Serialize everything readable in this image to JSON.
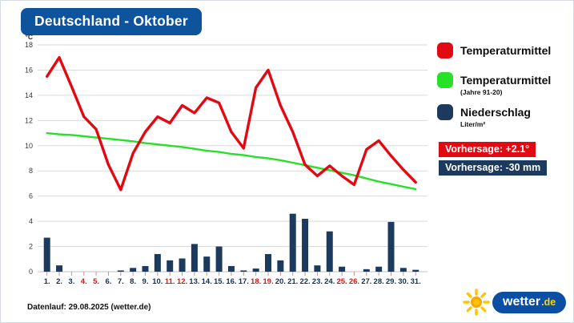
{
  "title": "Deutschland - Oktober",
  "colors": {
    "title_bg": "#0d549c",
    "temp_red": "#e30913",
    "avg_green": "#27e027",
    "precip_navy": "#1b3a5e",
    "weekend_label_red": "#cc1a1a",
    "weekday_label_navy": "#16324f",
    "logo_bg": "#0a4fa4",
    "logo_tld_yellow": "#ffd400"
  },
  "legend": {
    "items": [
      {
        "label": "Temperaturmittel",
        "sublabel": "",
        "color": "#e30913"
      },
      {
        "label": "Temperaturmittel",
        "sublabel": "(Jahre 91-20)",
        "color": "#27e027"
      },
      {
        "label": "Niederschlag",
        "sublabel": "Liter/m²",
        "color": "#1b3a5e"
      }
    ]
  },
  "badges": {
    "temperature": {
      "label": "Vorhersage: +2.1°",
      "color": "#e30913"
    },
    "precipitation": {
      "label": "Vorhersage: -30 mm",
      "color": "#1b3a5e"
    }
  },
  "footer": {
    "datenlauf": "Datenlauf: 29.08.2025 (wetter.de)"
  },
  "logo": {
    "name": "wetter",
    "tld": ".de"
  },
  "chart_data": {
    "type": "line+bar",
    "title": "Deutschland - Oktober",
    "ylabel": "°C",
    "ylim": [
      0,
      18
    ],
    "ytick_step": 2,
    "grid": true,
    "legend_position": "right",
    "x_labels": [
      "1.",
      "2.",
      "3.",
      "4.",
      "5.",
      "6.",
      "7.",
      "8.",
      "9.",
      "10.",
      "11.",
      "12.",
      "13.",
      "14.",
      "15.",
      "16.",
      "17.",
      "18.",
      "19.",
      "20.",
      "21.",
      "22.",
      "23.",
      "24.",
      "25.",
      "26.",
      "27.",
      "28.",
      "29.",
      "30.",
      "31."
    ],
    "red_x_labels": [
      4,
      5,
      11,
      12,
      18,
      19,
      25,
      26
    ],
    "series": [
      {
        "name": "Temperaturmittel",
        "type": "line",
        "color": "#e30913",
        "values": [
          15.5,
          17,
          14.7,
          12.3,
          11.3,
          8.5,
          6.5,
          9.4,
          11.1,
          12.3,
          11.8,
          13.2,
          12.6,
          13.8,
          13.4,
          11.1,
          9.8,
          14.6,
          16,
          13.2,
          11.1,
          8.5,
          7.6,
          8.4,
          7.6,
          6.9,
          9.7,
          10.4,
          9.2,
          8.1,
          7.1
        ]
      },
      {
        "name": "Temperaturmittel (Jahre 91-20)",
        "type": "line",
        "color": "#27e027",
        "values": [
          11,
          10.9,
          10.85,
          10.75,
          10.65,
          10.55,
          10.45,
          10.35,
          10.2,
          10.1,
          10,
          9.9,
          9.75,
          9.6,
          9.5,
          9.35,
          9.25,
          9.1,
          9,
          8.85,
          8.65,
          8.45,
          8.25,
          8.05,
          7.85,
          7.65,
          7.4,
          7.15,
          6.95,
          6.75,
          6.55
        ]
      },
      {
        "name": "Niederschlag (Liter/m²)",
        "type": "bar",
        "color": "#1b3a5e",
        "values": [
          2.7,
          0.5,
          0,
          0,
          0,
          0,
          0.1,
          0.3,
          0.45,
          1.4,
          0.9,
          1.05,
          2.2,
          1.2,
          2,
          0.45,
          0.1,
          0.25,
          1.4,
          0.9,
          4.6,
          4.2,
          0.5,
          3.2,
          0.4,
          0,
          0.2,
          0.4,
          3.95,
          0.3,
          0.15
        ]
      }
    ]
  }
}
